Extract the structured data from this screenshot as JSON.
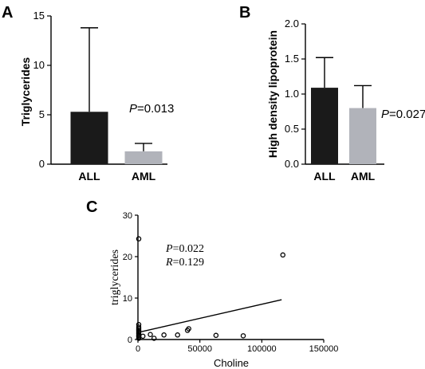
{
  "panels": {
    "a": {
      "label": "A",
      "annotation_italic": "P",
      "annotation_rest": "=0.013"
    },
    "b": {
      "label": "B",
      "annotation_italic": "P",
      "annotation_rest": "=0.027"
    },
    "c": {
      "label": "C",
      "annotation_p_italic": "P",
      "annotation_p_rest": "=0.022",
      "annotation_r_italic": "R",
      "annotation_r_rest": "=0.129"
    }
  },
  "colors": {
    "bar_all": "#1a1a1a",
    "bar_aml": "#b1b3ba"
  },
  "chart_data": [
    {
      "type": "bar",
      "panel": "A",
      "categories": [
        "ALL",
        "AML"
      ],
      "values": [
        5.3,
        1.3
      ],
      "errors": [
        8.5,
        0.8
      ],
      "ylabel": "Triglycerides",
      "xlabel": "",
      "ylim": [
        0,
        15
      ],
      "yticks": [
        0,
        5,
        10,
        15
      ],
      "ytick_labels": [
        "0",
        "5",
        "10",
        "15"
      ]
    },
    {
      "type": "bar",
      "panel": "B",
      "categories": [
        "ALL",
        "AML"
      ],
      "values": [
        1.09,
        0.8
      ],
      "errors": [
        0.43,
        0.32
      ],
      "ylabel": "High density lipoprotein",
      "xlabel": "",
      "ylim": [
        0,
        2.0
      ],
      "yticks": [
        0,
        0.5,
        1.0,
        1.5,
        2.0
      ],
      "ytick_labels": [
        "0.0",
        "0.5",
        "1.0",
        "1.5",
        "2.0"
      ]
    },
    {
      "type": "scatter",
      "panel": "C",
      "xlabel": "Choline",
      "ylabel": "triglycerides",
      "xlim": [
        0,
        150000
      ],
      "ylim": [
        0,
        30
      ],
      "xticks": [
        0,
        50000,
        100000,
        150000
      ],
      "xtick_labels": [
        "0",
        "50000",
        "100000",
        "150000"
      ],
      "yticks": [
        0,
        10,
        20,
        30
      ],
      "ytick_labels": [
        "0",
        "10",
        "20",
        "30"
      ],
      "points": [
        {
          "x": 0,
          "y": 24.3
        },
        {
          "x": 0,
          "y": 3.6
        },
        {
          "x": 0,
          "y": 3.0
        },
        {
          "x": 0,
          "y": 2.6
        },
        {
          "x": 0,
          "y": 2.2
        },
        {
          "x": 0,
          "y": 1.8
        },
        {
          "x": 0,
          "y": 1.4
        },
        {
          "x": 0,
          "y": 1.0
        },
        {
          "x": 0,
          "y": 0.7
        },
        {
          "x": 0,
          "y": 0.3
        },
        {
          "x": 4000,
          "y": 0.8
        },
        {
          "x": 10000,
          "y": 1.2
        },
        {
          "x": 13000,
          "y": 0.3
        },
        {
          "x": 21000,
          "y": 1.1
        },
        {
          "x": 32000,
          "y": 1.1
        },
        {
          "x": 40000,
          "y": 2.2
        },
        {
          "x": 41000,
          "y": 2.6
        },
        {
          "x": 63000,
          "y": 1.0
        },
        {
          "x": 85000,
          "y": 0.9
        },
        {
          "x": 117000,
          "y": 20.4
        }
      ],
      "trendline": {
        "x": [
          0,
          116000
        ],
        "y": [
          1.7,
          9.6
        ]
      }
    }
  ]
}
